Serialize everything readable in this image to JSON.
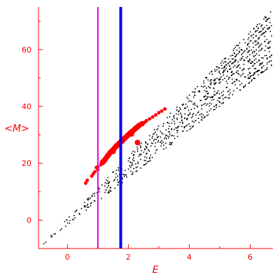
{
  "chart_data": {
    "type": "scatter",
    "title": "",
    "xlabel": "E",
    "ylabel": "<M>",
    "xlim": [
      -0.95,
      6.75
    ],
    "ylim": [
      -10,
      75
    ],
    "xticks": [
      0,
      2,
      4,
      6
    ],
    "yticks": [
      0,
      20,
      40,
      60
    ],
    "grid": false,
    "legend": "none",
    "colors": {
      "axis": "#ff0000",
      "black_points": "#000000",
      "red_points": "#ff0000",
      "magenta_line": "#e000e0",
      "blue_line": "#0000ff"
    },
    "vlines": [
      {
        "x": 1.0,
        "color": "#e000e0"
      },
      {
        "x": 1.75,
        "color": "#0000ff"
      }
    ],
    "series": [
      {
        "color": "#000000",
        "marker": "dot",
        "band": {
          "x_range": [
            -0.85,
            6.7
          ],
          "upper_line": {
            "x0": -0.85,
            "y0": -8.6,
            "x1": 6.7,
            "y1": 74
          },
          "lower_line": {
            "x0": -0.85,
            "y0": -8.6,
            "x1": 6.7,
            "y1": 55
          },
          "point_count": 900
        }
      },
      {
        "color": "#ff0000",
        "marker": "circle",
        "values": [
          [
            0.6,
            13
          ],
          [
            0.65,
            14
          ],
          [
            0.8,
            15.5
          ],
          [
            0.85,
            16.3
          ],
          [
            0.9,
            17
          ],
          [
            0.95,
            18.5
          ],
          [
            1.0,
            17.8
          ],
          [
            1.0,
            18.8
          ],
          [
            1.1,
            19.5
          ],
          [
            1.15,
            20.3
          ],
          [
            1.2,
            20.8
          ],
          [
            1.25,
            21.5
          ],
          [
            1.3,
            22.3
          ],
          [
            1.35,
            23
          ],
          [
            1.4,
            23.7
          ],
          [
            1.45,
            24.2
          ],
          [
            1.5,
            24.8
          ],
          [
            1.55,
            25.4
          ],
          [
            1.6,
            26
          ],
          [
            1.65,
            26.5
          ],
          [
            1.7,
            27
          ],
          [
            1.75,
            27.5
          ],
          [
            1.8,
            28.1
          ],
          [
            1.85,
            28.5
          ],
          [
            1.9,
            29
          ],
          [
            1.95,
            29.5
          ],
          [
            2.0,
            30
          ],
          [
            2.05,
            30.5
          ],
          [
            2.1,
            31
          ],
          [
            2.15,
            31.4
          ],
          [
            2.2,
            31.9
          ],
          [
            2.25,
            32.4
          ],
          [
            2.3,
            32.8
          ],
          [
            2.35,
            33.3
          ],
          [
            2.45,
            33.9
          ],
          [
            2.55,
            34.5
          ],
          [
            2.6,
            35
          ],
          [
            2.7,
            35.6
          ],
          [
            2.8,
            36.3
          ],
          [
            2.9,
            37
          ],
          [
            3.0,
            37.8
          ],
          [
            3.1,
            38.4
          ],
          [
            3.2,
            39.1
          ],
          [
            2.3,
            27.3
          ],
          [
            1.5,
            24.2
          ],
          [
            1.8,
            27.8
          ],
          [
            2.1,
            30.3
          ]
        ]
      }
    ]
  }
}
